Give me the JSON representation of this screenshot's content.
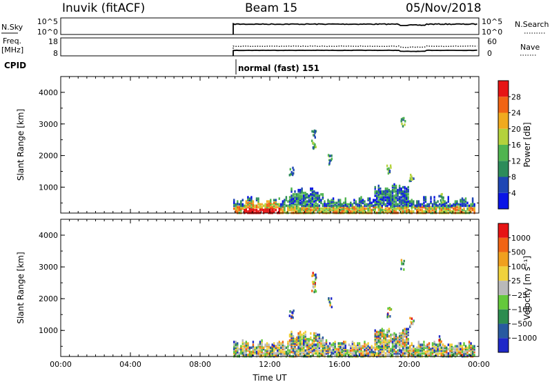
{
  "header": {
    "station": "Inuvik (fitACF)",
    "beam": "Beam 15",
    "date": "05/Nov/2018"
  },
  "strip_labels": {
    "nsky": "N.Sky",
    "nsky_ticks": [
      "10^5",
      "10^0"
    ],
    "nsearch": "N.Search",
    "nsearch_ticks": [
      "10^5",
      "10^0"
    ],
    "freq_line1": "Freq.",
    "freq_line2": "[MHz]",
    "freq_ticks": [
      "18",
      "8"
    ],
    "nave": "Nave",
    "nave_ticks": [
      "60",
      "0"
    ],
    "cpid": "CPID",
    "cpid_name": "normal (fast) 151"
  },
  "chart_data": [
    {
      "type": "heatmap",
      "name": "power-panel",
      "ylabel": "Slant Range [km]",
      "ylim": [
        180,
        4500
      ],
      "yticks": [
        1000,
        2000,
        3000,
        4000
      ],
      "xlim": [
        0,
        24
      ],
      "colorbar": {
        "label": "Power [dB]",
        "ticks": [
          "4",
          "8",
          "12",
          "16",
          "20",
          "24",
          "28"
        ],
        "colors": [
          "#0a14e6",
          "#1e46b4",
          "#2d8c5a",
          "#50b450",
          "#b4d23c",
          "#f0aa1e",
          "#f06414",
          "#e61414"
        ]
      }
    },
    {
      "type": "heatmap",
      "name": "velocity-panel",
      "ylabel": "Slant Range [km]",
      "ylim": [
        180,
        4500
      ],
      "yticks": [
        1000,
        2000,
        3000,
        4000
      ],
      "xlim": [
        0,
        24
      ],
      "xticks": [
        "00:00",
        "04:00",
        "08:00",
        "12:00",
        "16:00",
        "20:00",
        "00:00"
      ],
      "xlabel": "Time UT",
      "colorbar": {
        "label": "Velocity [m s⁻¹]",
        "ticks": [
          "1000",
          "500",
          "100",
          "25",
          "−25",
          "−100",
          "−500",
          "−1000"
        ],
        "colors": [
          "#1e28c8",
          "#285aa0",
          "#2d8c50",
          "#64c83c",
          "#b9b9b9",
          "#f0d23c",
          "#f0a01e",
          "#f06414",
          "#e61414"
        ]
      }
    }
  ],
  "data_window": {
    "start_hour": 9.9,
    "end_hour": 24
  }
}
